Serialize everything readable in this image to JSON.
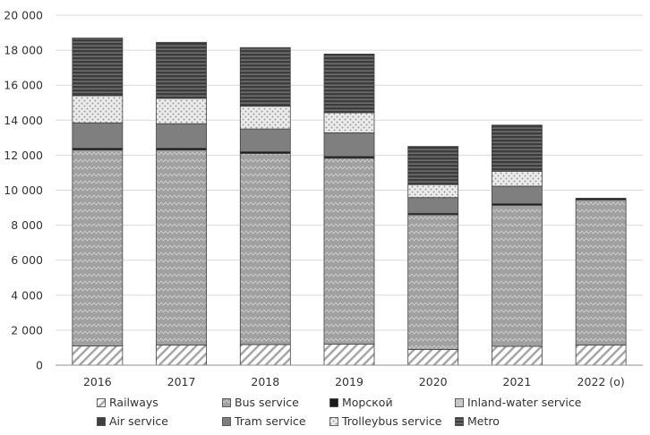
{
  "chart_data": {
    "type": "bar",
    "stacked": true,
    "categories": [
      "2016",
      "2017",
      "2018",
      "2019",
      "2020",
      "2021",
      "2022 (o)"
    ],
    "series": [
      {
        "name": "Railways",
        "color": "#ffffff",
        "pattern": "diagonal-hatch",
        "values": [
          1100,
          1150,
          1180,
          1200,
          900,
          1080,
          1150
        ]
      },
      {
        "name": "Bus service",
        "color": "#a0a0a0",
        "pattern": "zigzag",
        "values": [
          11200,
          11150,
          10920,
          10630,
          7700,
          8060,
          8300
        ]
      },
      {
        "name": "Морской",
        "color": "#1a1a1a",
        "pattern": "solid",
        "values": [
          100,
          100,
          100,
          100,
          80,
          90,
          90
        ]
      },
      {
        "name": "Inland-water service",
        "color": "#c8c8c8",
        "pattern": "solid",
        "values": [
          0,
          0,
          0,
          0,
          0,
          0,
          0
        ]
      },
      {
        "name": "Air service",
        "color": "#404040",
        "pattern": "solid",
        "values": [
          0,
          0,
          0,
          0,
          0,
          0,
          0
        ]
      },
      {
        "name": "Tram service",
        "color": "#7f7f7f",
        "pattern": "solid",
        "values": [
          1450,
          1400,
          1300,
          1350,
          900,
          1000,
          0
        ]
      },
      {
        "name": "Trolleybus service",
        "color": "#e0e0e0",
        "pattern": "dots",
        "values": [
          1550,
          1450,
          1300,
          1150,
          740,
          850,
          0
        ]
      },
      {
        "name": "Metro",
        "color": "#404040",
        "pattern": "horizontal-stripes",
        "values": [
          3300,
          3200,
          3350,
          3350,
          2180,
          2640,
          0
        ]
      }
    ],
    "yticks": [
      "0",
      "2 000",
      "4 000",
      "6 000",
      "8 000",
      "10 000",
      "12 000",
      "14 000",
      "16 000",
      "18 000",
      "20 000"
    ],
    "ylim": [
      0,
      20000
    ],
    "grid": true,
    "legend": "bottom"
  }
}
